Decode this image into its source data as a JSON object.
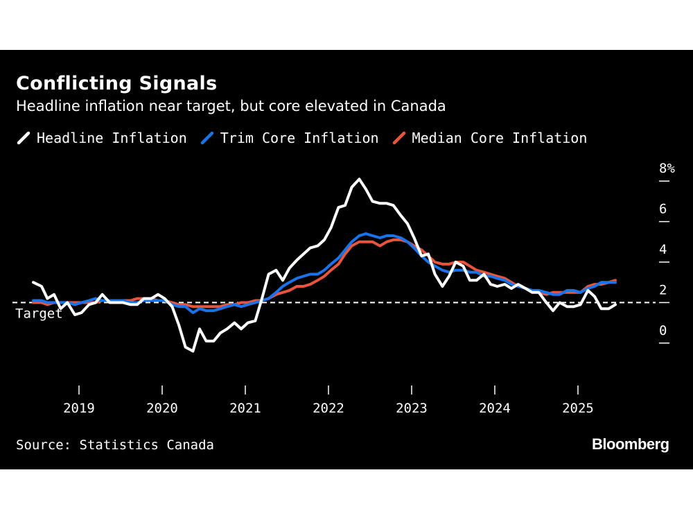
{
  "chart_data": {
    "type": "line",
    "title": "Conflicting Signals",
    "subtitle": "Headline inflation near target, but core elevated in Canada",
    "ylabel": "%",
    "ylim": [
      -1,
      9
    ],
    "yticks": [
      {
        "value": 0,
        "label": "0"
      },
      {
        "value": 2,
        "label": "2"
      },
      {
        "value": 4,
        "label": "4"
      },
      {
        "value": 6,
        "label": "6"
      },
      {
        "value": 8,
        "label": "8%"
      }
    ],
    "xticks": [
      {
        "value": 2019,
        "label": "2019"
      },
      {
        "value": 2020,
        "label": "2020"
      },
      {
        "value": 2021,
        "label": "2021"
      },
      {
        "value": 2022,
        "label": "2022"
      },
      {
        "value": 2023,
        "label": "2023"
      },
      {
        "value": 2024,
        "label": "2024"
      },
      {
        "value": 2025,
        "label": "2025"
      }
    ],
    "xlim": [
      2018.3,
      2025.95
    ],
    "reference_line": {
      "value": 2,
      "label": "Target"
    },
    "series": [
      {
        "name": "Headline Inflation",
        "color": "#ffffff",
        "points": [
          [
            2018.45,
            3.0
          ],
          [
            2018.55,
            2.8
          ],
          [
            2018.62,
            2.2
          ],
          [
            2018.7,
            2.4
          ],
          [
            2018.78,
            1.7
          ],
          [
            2018.86,
            2.0
          ],
          [
            2018.95,
            1.4
          ],
          [
            2019.03,
            1.5
          ],
          [
            2019.12,
            1.9
          ],
          [
            2019.2,
            2.0
          ],
          [
            2019.28,
            2.4
          ],
          [
            2019.37,
            2.0
          ],
          [
            2019.45,
            2.0
          ],
          [
            2019.53,
            2.0
          ],
          [
            2019.62,
            1.9
          ],
          [
            2019.7,
            1.9
          ],
          [
            2019.78,
            2.2
          ],
          [
            2019.87,
            2.2
          ],
          [
            2019.95,
            2.4
          ],
          [
            2020.03,
            2.2
          ],
          [
            2020.12,
            1.8
          ],
          [
            2020.2,
            0.9
          ],
          [
            2020.28,
            -0.2
          ],
          [
            2020.37,
            -0.4
          ],
          [
            2020.45,
            0.7
          ],
          [
            2020.53,
            0.1
          ],
          [
            2020.62,
            0.1
          ],
          [
            2020.7,
            0.5
          ],
          [
            2020.78,
            0.7
          ],
          [
            2020.87,
            1.0
          ],
          [
            2020.95,
            0.7
          ],
          [
            2021.03,
            1.0
          ],
          [
            2021.12,
            1.1
          ],
          [
            2021.2,
            2.2
          ],
          [
            2021.28,
            3.4
          ],
          [
            2021.37,
            3.6
          ],
          [
            2021.45,
            3.1
          ],
          [
            2021.53,
            3.7
          ],
          [
            2021.62,
            4.1
          ],
          [
            2021.7,
            4.4
          ],
          [
            2021.78,
            4.7
          ],
          [
            2021.87,
            4.8
          ],
          [
            2021.95,
            5.1
          ],
          [
            2022.03,
            5.7
          ],
          [
            2022.12,
            6.7
          ],
          [
            2022.2,
            6.8
          ],
          [
            2022.28,
            7.7
          ],
          [
            2022.37,
            8.1
          ],
          [
            2022.45,
            7.6
          ],
          [
            2022.53,
            7.0
          ],
          [
            2022.62,
            6.9
          ],
          [
            2022.7,
            6.9
          ],
          [
            2022.78,
            6.8
          ],
          [
            2022.87,
            6.3
          ],
          [
            2022.95,
            5.9
          ],
          [
            2023.03,
            5.2
          ],
          [
            2023.12,
            4.3
          ],
          [
            2023.2,
            4.4
          ],
          [
            2023.28,
            3.4
          ],
          [
            2023.37,
            2.8
          ],
          [
            2023.45,
            3.3
          ],
          [
            2023.53,
            4.0
          ],
          [
            2023.62,
            3.8
          ],
          [
            2023.7,
            3.1
          ],
          [
            2023.78,
            3.1
          ],
          [
            2023.87,
            3.4
          ],
          [
            2023.95,
            2.9
          ],
          [
            2024.03,
            2.8
          ],
          [
            2024.12,
            2.9
          ],
          [
            2024.2,
            2.7
          ],
          [
            2024.28,
            2.9
          ],
          [
            2024.37,
            2.7
          ],
          [
            2024.45,
            2.5
          ],
          [
            2024.53,
            2.5
          ],
          [
            2024.62,
            2.0
          ],
          [
            2024.7,
            1.6
          ],
          [
            2024.78,
            2.0
          ],
          [
            2024.87,
            1.8
          ],
          [
            2024.95,
            1.8
          ],
          [
            2025.03,
            1.9
          ],
          [
            2025.12,
            2.6
          ],
          [
            2025.2,
            2.3
          ],
          [
            2025.28,
            1.7
          ],
          [
            2025.37,
            1.7
          ],
          [
            2025.45,
            1.9
          ]
        ]
      },
      {
        "name": "Trim Core Inflation",
        "color": "#1a73e8",
        "points": [
          [
            2018.45,
            2.1
          ],
          [
            2018.55,
            2.1
          ],
          [
            2018.62,
            2.0
          ],
          [
            2018.7,
            2.0
          ],
          [
            2018.78,
            2.0
          ],
          [
            2018.86,
            2.0
          ],
          [
            2018.95,
            1.9
          ],
          [
            2019.03,
            2.0
          ],
          [
            2019.12,
            2.1
          ],
          [
            2019.2,
            2.2
          ],
          [
            2019.28,
            2.1
          ],
          [
            2019.37,
            2.1
          ],
          [
            2019.45,
            2.1
          ],
          [
            2019.53,
            2.1
          ],
          [
            2019.62,
            2.0
          ],
          [
            2019.7,
            2.0
          ],
          [
            2019.78,
            2.1
          ],
          [
            2019.87,
            2.1
          ],
          [
            2019.95,
            2.1
          ],
          [
            2020.03,
            2.1
          ],
          [
            2020.12,
            1.9
          ],
          [
            2020.2,
            1.8
          ],
          [
            2020.28,
            1.8
          ],
          [
            2020.37,
            1.5
          ],
          [
            2020.45,
            1.7
          ],
          [
            2020.53,
            1.6
          ],
          [
            2020.62,
            1.6
          ],
          [
            2020.7,
            1.7
          ],
          [
            2020.78,
            1.8
          ],
          [
            2020.87,
            1.9
          ],
          [
            2020.95,
            1.8
          ],
          [
            2021.03,
            1.9
          ],
          [
            2021.12,
            2.0
          ],
          [
            2021.2,
            2.1
          ],
          [
            2021.28,
            2.2
          ],
          [
            2021.37,
            2.5
          ],
          [
            2021.45,
            2.8
          ],
          [
            2021.53,
            3.0
          ],
          [
            2021.62,
            3.2
          ],
          [
            2021.7,
            3.3
          ],
          [
            2021.78,
            3.4
          ],
          [
            2021.87,
            3.4
          ],
          [
            2021.95,
            3.6
          ],
          [
            2022.03,
            3.9
          ],
          [
            2022.12,
            4.2
          ],
          [
            2022.2,
            4.6
          ],
          [
            2022.28,
            5.0
          ],
          [
            2022.37,
            5.3
          ],
          [
            2022.45,
            5.4
          ],
          [
            2022.53,
            5.3
          ],
          [
            2022.62,
            5.2
          ],
          [
            2022.7,
            5.3
          ],
          [
            2022.78,
            5.3
          ],
          [
            2022.87,
            5.2
          ],
          [
            2022.95,
            5.0
          ],
          [
            2023.03,
            4.7
          ],
          [
            2023.12,
            4.3
          ],
          [
            2023.2,
            4.0
          ],
          [
            2023.28,
            3.8
          ],
          [
            2023.37,
            3.6
          ],
          [
            2023.45,
            3.5
          ],
          [
            2023.53,
            3.6
          ],
          [
            2023.62,
            3.6
          ],
          [
            2023.7,
            3.5
          ],
          [
            2023.78,
            3.5
          ],
          [
            2023.87,
            3.3
          ],
          [
            2023.95,
            3.3
          ],
          [
            2024.03,
            3.2
          ],
          [
            2024.12,
            3.1
          ],
          [
            2024.2,
            2.9
          ],
          [
            2024.28,
            2.8
          ],
          [
            2024.37,
            2.7
          ],
          [
            2024.45,
            2.6
          ],
          [
            2024.53,
            2.6
          ],
          [
            2024.62,
            2.5
          ],
          [
            2024.7,
            2.4
          ],
          [
            2024.78,
            2.4
          ],
          [
            2024.87,
            2.6
          ],
          [
            2024.95,
            2.6
          ],
          [
            2025.03,
            2.5
          ],
          [
            2025.12,
            2.7
          ],
          [
            2025.2,
            2.8
          ],
          [
            2025.28,
            3.0
          ],
          [
            2025.37,
            3.0
          ],
          [
            2025.45,
            3.0
          ]
        ]
      },
      {
        "name": "Median Core Inflation",
        "color": "#e8553d",
        "points": [
          [
            2018.45,
            2.0
          ],
          [
            2018.55,
            2.0
          ],
          [
            2018.62,
            1.9
          ],
          [
            2018.7,
            2.0
          ],
          [
            2018.78,
            2.0
          ],
          [
            2018.86,
            2.0
          ],
          [
            2018.95,
            2.0
          ],
          [
            2019.03,
            2.0
          ],
          [
            2019.12,
            2.0
          ],
          [
            2019.2,
            2.0
          ],
          [
            2019.28,
            2.1
          ],
          [
            2019.37,
            2.1
          ],
          [
            2019.45,
            2.1
          ],
          [
            2019.53,
            2.1
          ],
          [
            2019.62,
            2.1
          ],
          [
            2019.7,
            2.2
          ],
          [
            2019.78,
            2.2
          ],
          [
            2019.87,
            2.2
          ],
          [
            2019.95,
            2.1
          ],
          [
            2020.03,
            2.1
          ],
          [
            2020.12,
            2.0
          ],
          [
            2020.2,
            1.9
          ],
          [
            2020.28,
            1.9
          ],
          [
            2020.37,
            1.8
          ],
          [
            2020.45,
            1.8
          ],
          [
            2020.53,
            1.8
          ],
          [
            2020.62,
            1.8
          ],
          [
            2020.7,
            1.8
          ],
          [
            2020.78,
            1.9
          ],
          [
            2020.87,
            1.9
          ],
          [
            2020.95,
            2.0
          ],
          [
            2021.03,
            2.0
          ],
          [
            2021.12,
            2.1
          ],
          [
            2021.2,
            2.1
          ],
          [
            2021.28,
            2.2
          ],
          [
            2021.37,
            2.4
          ],
          [
            2021.45,
            2.5
          ],
          [
            2021.53,
            2.6
          ],
          [
            2021.62,
            2.8
          ],
          [
            2021.7,
            2.8
          ],
          [
            2021.78,
            2.9
          ],
          [
            2021.87,
            3.1
          ],
          [
            2021.95,
            3.3
          ],
          [
            2022.03,
            3.6
          ],
          [
            2022.12,
            3.9
          ],
          [
            2022.2,
            4.4
          ],
          [
            2022.28,
            4.8
          ],
          [
            2022.37,
            5.0
          ],
          [
            2022.45,
            5.0
          ],
          [
            2022.53,
            5.0
          ],
          [
            2022.62,
            4.8
          ],
          [
            2022.7,
            5.0
          ],
          [
            2022.78,
            5.1
          ],
          [
            2022.87,
            5.1
          ],
          [
            2022.95,
            5.0
          ],
          [
            2023.03,
            4.8
          ],
          [
            2023.12,
            4.6
          ],
          [
            2023.2,
            4.3
          ],
          [
            2023.28,
            4.0
          ],
          [
            2023.37,
            3.9
          ],
          [
            2023.45,
            3.9
          ],
          [
            2023.53,
            4.0
          ],
          [
            2023.62,
            4.0
          ],
          [
            2023.7,
            3.8
          ],
          [
            2023.78,
            3.6
          ],
          [
            2023.87,
            3.5
          ],
          [
            2023.95,
            3.4
          ],
          [
            2024.03,
            3.3
          ],
          [
            2024.12,
            3.2
          ],
          [
            2024.2,
            3.0
          ],
          [
            2024.28,
            2.8
          ],
          [
            2024.37,
            2.7
          ],
          [
            2024.45,
            2.6
          ],
          [
            2024.53,
            2.5
          ],
          [
            2024.62,
            2.4
          ],
          [
            2024.7,
            2.5
          ],
          [
            2024.78,
            2.5
          ],
          [
            2024.87,
            2.5
          ],
          [
            2024.95,
            2.5
          ],
          [
            2025.03,
            2.5
          ],
          [
            2025.12,
            2.8
          ],
          [
            2025.2,
            2.9
          ],
          [
            2025.28,
            2.9
          ],
          [
            2025.37,
            3.0
          ],
          [
            2025.45,
            3.1
          ]
        ]
      }
    ]
  },
  "footer": {
    "source": "Source: Statistics Canada",
    "brand": "Bloomberg"
  }
}
